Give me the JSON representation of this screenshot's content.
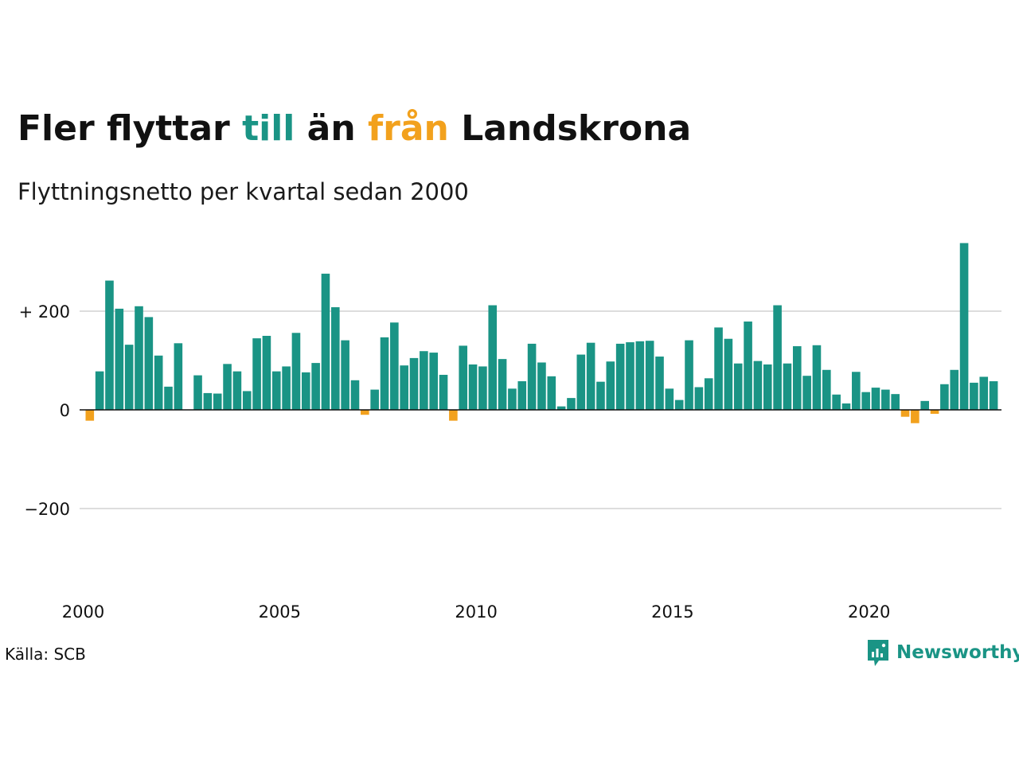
{
  "title": {
    "part1": "Fler flyttar ",
    "word_till": "till",
    "part2": " än ",
    "word_fran": "från",
    "part3": " Landskrona"
  },
  "subtitle": "Flyttningsnetto per kvartal sedan 2000",
  "source": "Källa: SCB",
  "logo": {
    "text": "Newsworthy",
    "icon": "chart-bubble-icon"
  },
  "colors": {
    "positive": "#1a9485",
    "negative": "#f2a11d",
    "grid": "#dddddd",
    "baseline": "#111111"
  },
  "chart_data": {
    "type": "bar",
    "x_start": "2000 Q1",
    "y_ticks": [
      {
        "value": 200,
        "label": "+ 200"
      },
      {
        "value": 0,
        "label": "0"
      },
      {
        "value": -200,
        "label": "−200"
      }
    ],
    "x_ticks": [
      {
        "year": 2000,
        "label": "2000"
      },
      {
        "year": 2005,
        "label": "2005"
      },
      {
        "year": 2010,
        "label": "2010"
      },
      {
        "year": 2015,
        "label": "2015"
      },
      {
        "year": 2020,
        "label": "2020"
      }
    ],
    "ylim": [
      -380,
      340
    ],
    "grid": true,
    "values": [
      -22,
      78,
      262,
      205,
      132,
      210,
      188,
      110,
      47,
      135,
      0,
      70,
      34,
      33,
      93,
      78,
      38,
      145,
      150,
      78,
      88,
      156,
      76,
      95,
      276,
      208,
      141,
      60,
      -10,
      41,
      147,
      177,
      90,
      105,
      119,
      116,
      71,
      -22,
      130,
      92,
      88,
      212,
      103,
      43,
      58,
      134,
      96,
      68,
      7,
      24,
      112,
      136,
      57,
      98,
      134,
      137,
      139,
      140,
      108,
      43,
      20,
      141,
      46,
      64,
      167,
      144,
      94,
      179,
      99,
      92,
      212,
      94,
      129,
      69,
      131,
      81,
      31,
      13,
      77,
      36,
      45,
      41,
      32,
      -14,
      -27,
      18,
      -8,
      52,
      81,
      338,
      55,
      67,
      58
    ]
  }
}
